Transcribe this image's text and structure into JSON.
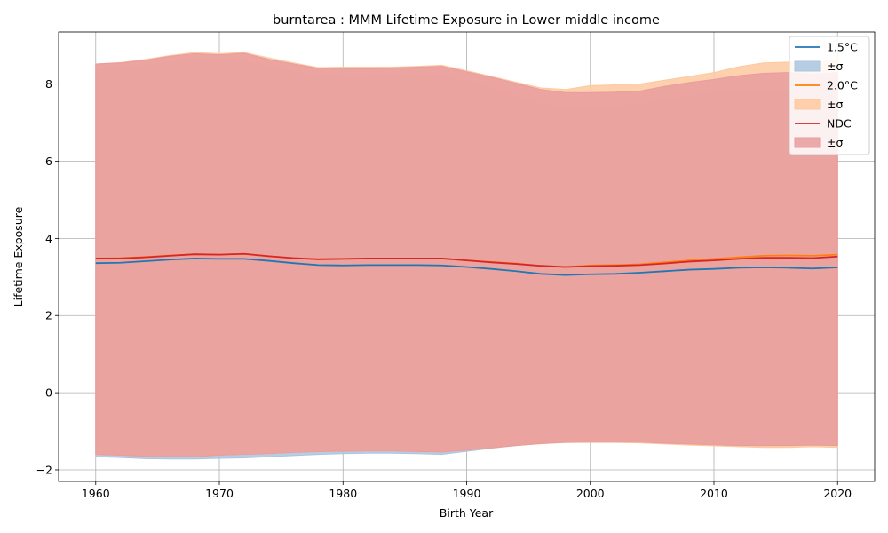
{
  "chart_data": {
    "type": "line",
    "title": "burntarea : MMM Lifetime Exposure in Lower middle income",
    "xlabel": "Birth Year",
    "ylabel": "Lifetime Exposure",
    "xlim": [
      1957,
      2023
    ],
    "ylim": [
      -2.3,
      9.35
    ],
    "xticks": [
      1960,
      1970,
      1980,
      1990,
      2000,
      2010,
      2020
    ],
    "yticks": [
      -2,
      0,
      2,
      4,
      6,
      8
    ],
    "grid": true,
    "legend_position": "top-right",
    "x": [
      1960,
      1962,
      1964,
      1966,
      1968,
      1970,
      1972,
      1974,
      1976,
      1978,
      1980,
      1982,
      1984,
      1986,
      1988,
      1990,
      1992,
      1994,
      1996,
      1998,
      2000,
      2002,
      2004,
      2006,
      2008,
      2010,
      2012,
      2014,
      2016,
      2018,
      2020
    ],
    "series": [
      {
        "name": "1.5°C",
        "band_label": "±σ",
        "color": "#1f77b4",
        "fill": "#a9c6e0",
        "values": [
          3.36,
          3.37,
          3.41,
          3.45,
          3.48,
          3.47,
          3.47,
          3.42,
          3.36,
          3.31,
          3.3,
          3.31,
          3.31,
          3.31,
          3.3,
          3.26,
          3.21,
          3.15,
          3.08,
          3.05,
          3.07,
          3.08,
          3.11,
          3.15,
          3.19,
          3.21,
          3.24,
          3.25,
          3.24,
          3.22,
          3.25
        ],
        "upper": [
          8.4,
          8.42,
          8.48,
          8.58,
          8.66,
          8.62,
          8.6,
          8.45,
          8.32,
          8.22,
          8.18,
          8.18,
          8.2,
          8.21,
          8.22,
          8.08,
          7.92,
          7.72,
          7.48,
          7.38,
          7.4,
          7.42,
          7.48,
          7.6,
          7.7,
          7.76,
          7.84,
          7.86,
          7.82,
          7.76,
          7.78
        ],
        "lower": [
          -1.66,
          -1.68,
          -1.71,
          -1.72,
          -1.72,
          -1.7,
          -1.69,
          -1.66,
          -1.63,
          -1.6,
          -1.58,
          -1.57,
          -1.57,
          -1.58,
          -1.6,
          -1.52,
          -1.44,
          -1.37,
          -1.31,
          -1.26,
          -1.27,
          -1.27,
          -1.27,
          -1.3,
          -1.33,
          -1.35,
          -1.37,
          -1.38,
          -1.37,
          -1.36,
          -1.35
        ]
      },
      {
        "name": "2.0°C",
        "band_label": "±σ",
        "color": "#ff7f0e",
        "fill": "#fdc99f",
        "values": [
          3.48,
          3.49,
          3.52,
          3.56,
          3.59,
          3.58,
          3.6,
          3.54,
          3.49,
          3.46,
          3.47,
          3.48,
          3.48,
          3.48,
          3.48,
          3.43,
          3.39,
          3.35,
          3.29,
          3.26,
          3.3,
          3.31,
          3.33,
          3.38,
          3.43,
          3.47,
          3.51,
          3.55,
          3.56,
          3.55,
          3.58
        ],
        "upper": [
          8.52,
          8.56,
          8.64,
          8.74,
          8.82,
          8.79,
          8.82,
          8.68,
          8.55,
          8.43,
          8.44,
          8.44,
          8.44,
          8.46,
          8.49,
          8.35,
          8.2,
          8.05,
          7.9,
          7.86,
          7.96,
          7.98,
          8.0,
          8.1,
          8.2,
          8.3,
          8.45,
          8.55,
          8.57,
          8.55,
          8.62
        ],
        "lower": [
          -1.6,
          -1.62,
          -1.64,
          -1.66,
          -1.66,
          -1.62,
          -1.6,
          -1.58,
          -1.55,
          -1.53,
          -1.52,
          -1.51,
          -1.51,
          -1.53,
          -1.54,
          -1.49,
          -1.43,
          -1.37,
          -1.32,
          -1.29,
          -1.29,
          -1.29,
          -1.3,
          -1.33,
          -1.36,
          -1.38,
          -1.4,
          -1.42,
          -1.42,
          -1.4,
          -1.42
        ]
      },
      {
        "name": "NDC",
        "band_label": "±σ",
        "color": "#d62728",
        "fill": "#e99c9d",
        "values": [
          3.48,
          3.48,
          3.51,
          3.55,
          3.59,
          3.58,
          3.6,
          3.54,
          3.49,
          3.46,
          3.47,
          3.48,
          3.48,
          3.48,
          3.48,
          3.43,
          3.38,
          3.34,
          3.29,
          3.26,
          3.28,
          3.29,
          3.31,
          3.35,
          3.4,
          3.43,
          3.47,
          3.5,
          3.5,
          3.49,
          3.53
        ],
        "upper": [
          8.52,
          8.55,
          8.62,
          8.72,
          8.79,
          8.76,
          8.8,
          8.64,
          8.52,
          8.41,
          8.41,
          8.4,
          8.42,
          8.44,
          8.46,
          8.32,
          8.18,
          8.02,
          7.86,
          7.78,
          7.78,
          7.79,
          7.82,
          7.94,
          8.04,
          8.12,
          8.22,
          8.28,
          8.3,
          8.26,
          8.3
        ],
        "lower": [
          -1.6,
          -1.62,
          -1.65,
          -1.66,
          -1.66,
          -1.62,
          -1.6,
          -1.58,
          -1.55,
          -1.53,
          -1.52,
          -1.51,
          -1.51,
          -1.53,
          -1.54,
          -1.49,
          -1.43,
          -1.37,
          -1.32,
          -1.29,
          -1.28,
          -1.28,
          -1.28,
          -1.31,
          -1.33,
          -1.35,
          -1.37,
          -1.37,
          -1.37,
          -1.36,
          -1.37
        ]
      }
    ]
  }
}
